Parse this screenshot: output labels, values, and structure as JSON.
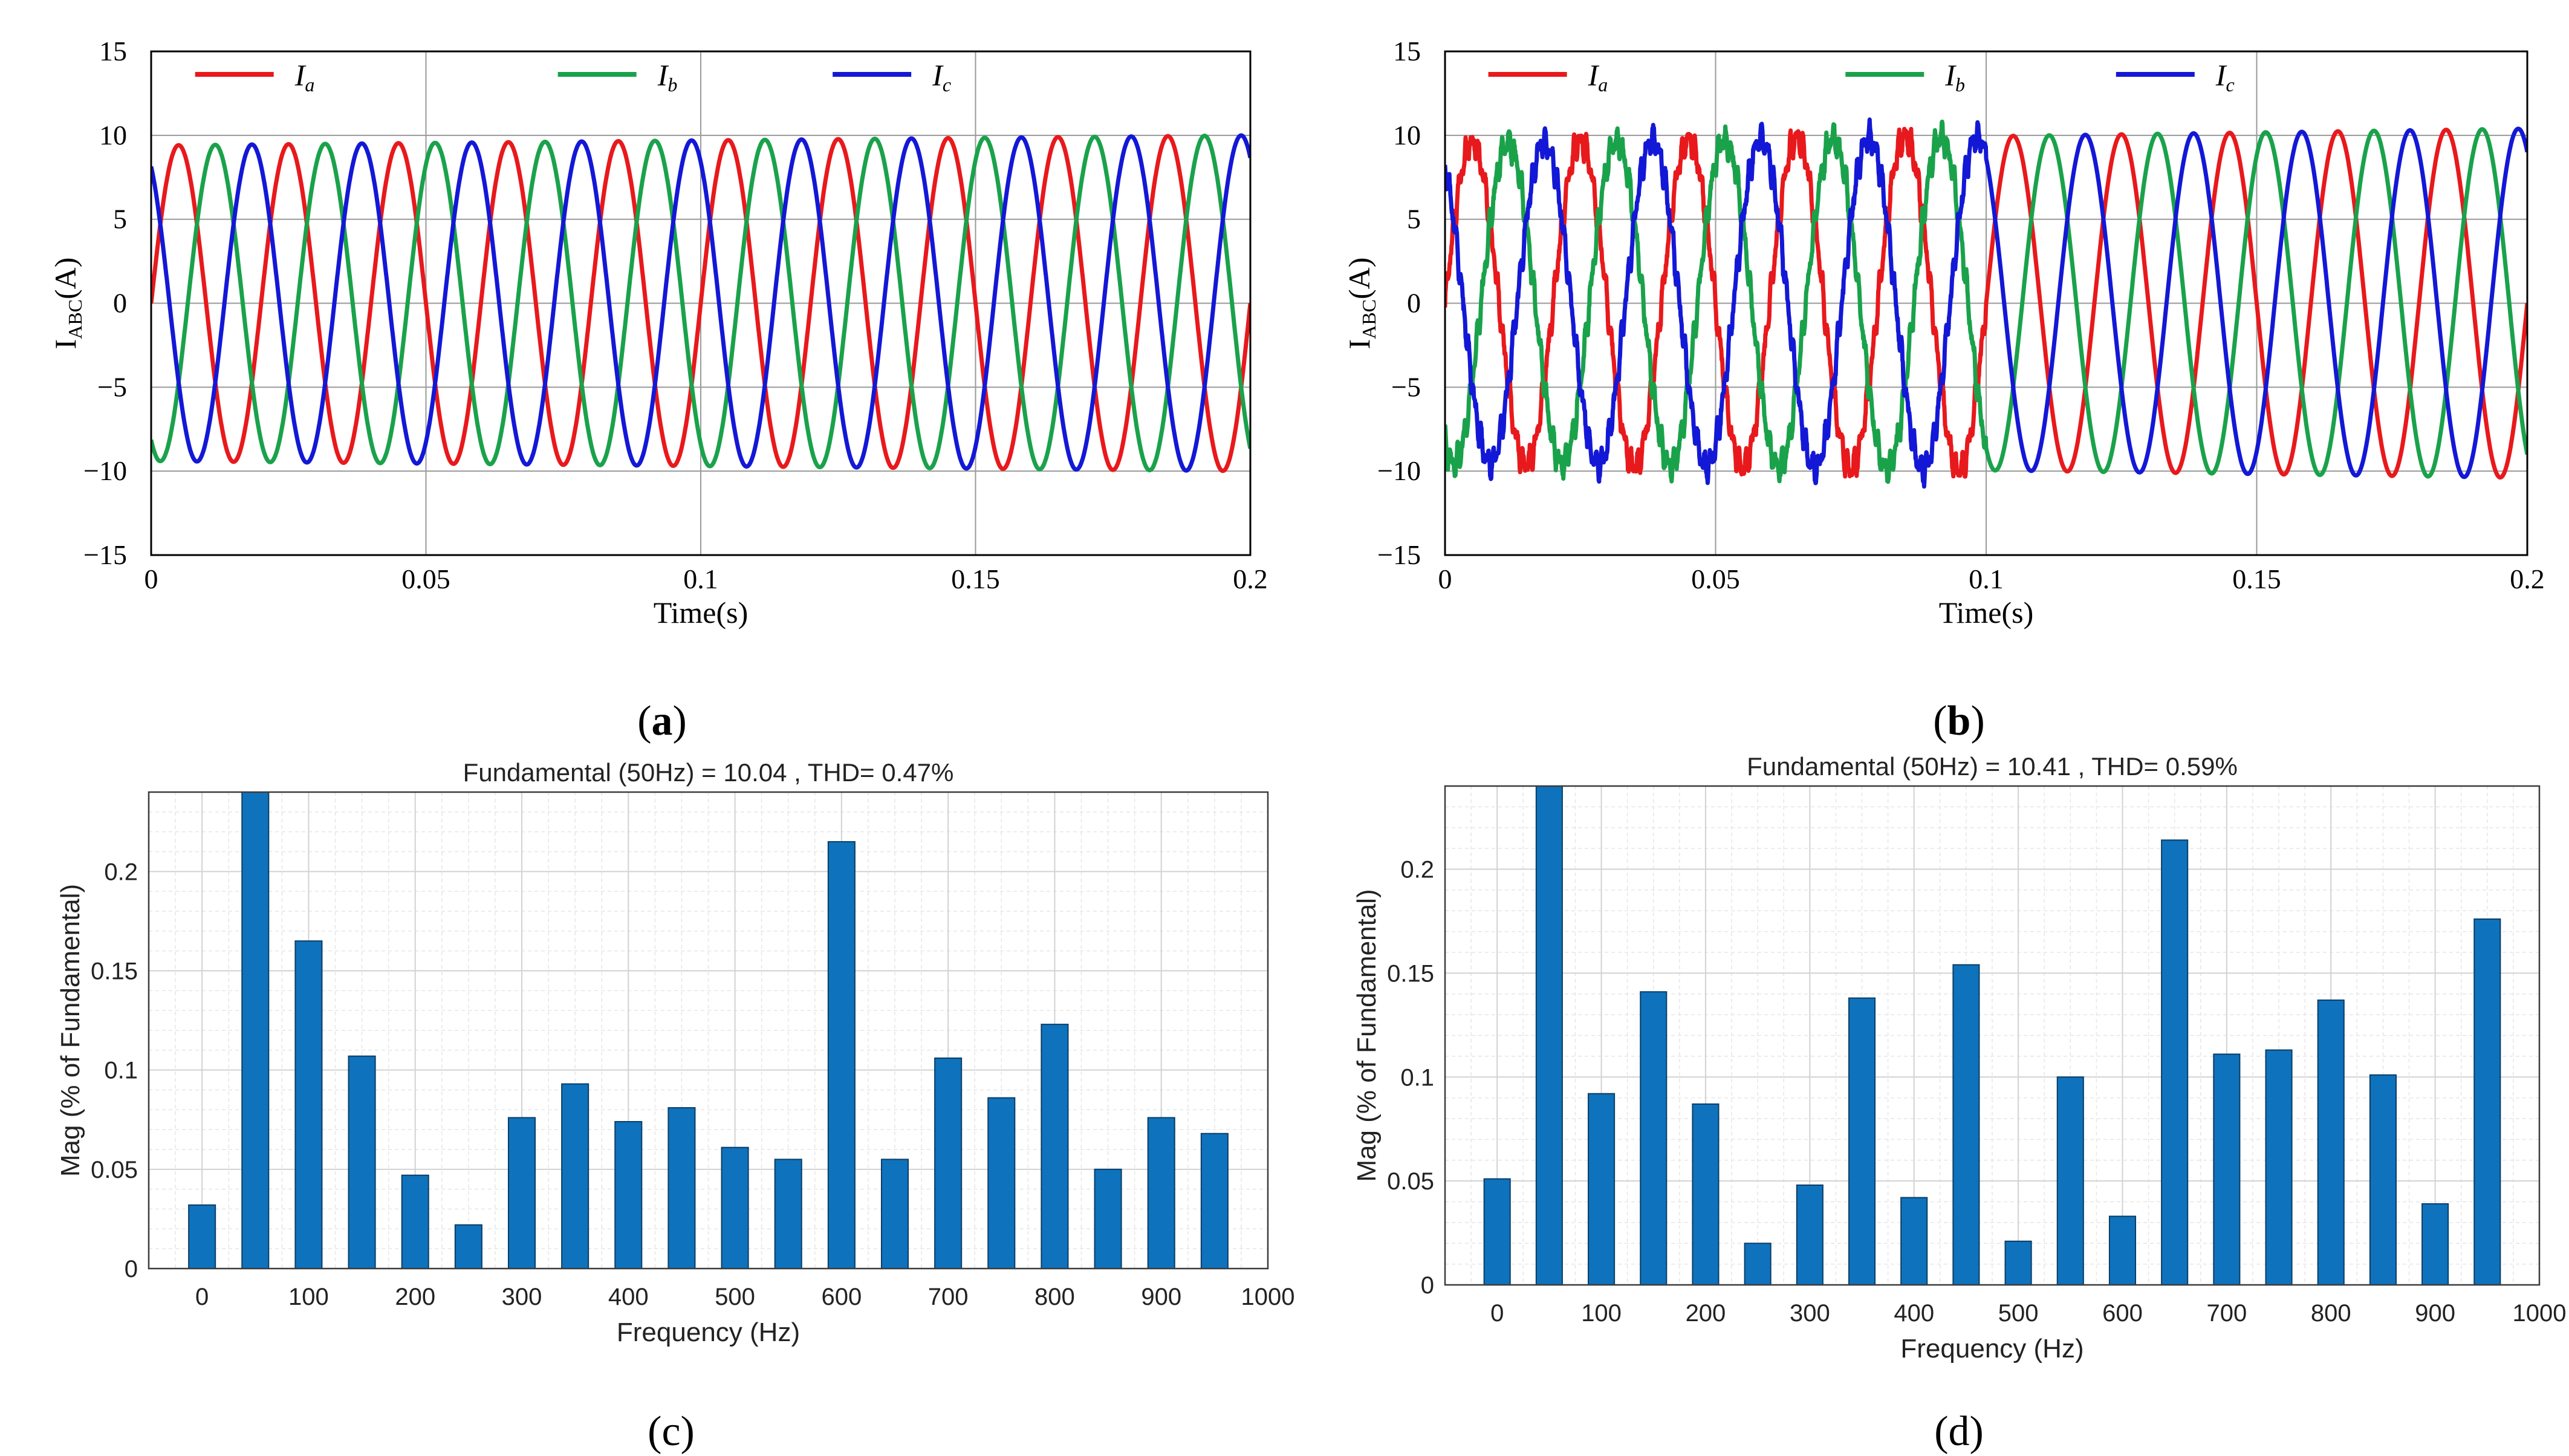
{
  "chart_data": [
    {
      "id": "a",
      "type": "line",
      "caption": "a",
      "xlabel": "Time(s)",
      "ylabel_main": "I",
      "ylabel_sub": "ABC",
      "ylabel_unit": "(A)",
      "xlim": [
        0,
        0.2
      ],
      "ylim": [
        -15,
        15
      ],
      "xticks": [
        "0",
        "0.05",
        "0.1",
        "0.15",
        "0.2"
      ],
      "yticks": [
        "15",
        "10",
        "5",
        "0",
        "−5",
        "−10",
        "−15"
      ],
      "frequency_hz": 50,
      "amplitude_start": 9.4,
      "amplitude_end": 10.0,
      "noise": false,
      "series": [
        {
          "name": "I",
          "sub": "a",
          "color": "#e8191c",
          "phase_deg": 0
        },
        {
          "name": "I",
          "sub": "b",
          "color": "#1aa24b",
          "phase_deg": -120
        },
        {
          "name": "I",
          "sub": "c",
          "color": "#1318d6",
          "phase_deg": 120
        }
      ]
    },
    {
      "id": "b",
      "type": "line",
      "caption": "b",
      "xlabel": "Time(s)",
      "ylabel_main": "I",
      "ylabel_sub": "ABC",
      "ylabel_unit": "(A)",
      "xlim": [
        0,
        0.2
      ],
      "ylim": [
        -15,
        15
      ],
      "xticks": [
        "0",
        "0.05",
        "0.1",
        "0.15",
        "0.2"
      ],
      "yticks": [
        "15",
        "10",
        "5",
        "0",
        "−5",
        "−10",
        "−15"
      ],
      "frequency_hz": 50,
      "amplitude_start": 9.5,
      "amplitude_end": 10.4,
      "noise": true,
      "noise_until": 0.1,
      "series": [
        {
          "name": "I",
          "sub": "a",
          "color": "#e8191c",
          "phase_deg": 0
        },
        {
          "name": "I",
          "sub": "b",
          "color": "#1aa24b",
          "phase_deg": -120
        },
        {
          "name": "I",
          "sub": "c",
          "color": "#1318d6",
          "phase_deg": 120
        }
      ]
    },
    {
      "id": "c",
      "type": "bar",
      "caption": "c",
      "title": "Fundamental (50Hz) = 10.04 , THD= 0.47%",
      "xlabel": "Frequency (Hz)",
      "ylabel": "Mag (% of Fundamental)",
      "xlim": [
        -50,
        1000
      ],
      "ylim": [
        0,
        0.24
      ],
      "xticks": [
        "0",
        "100",
        "200",
        "300",
        "400",
        "500",
        "600",
        "700",
        "800",
        "900",
        "1000"
      ],
      "yticks": [
        "0",
        "0.05",
        "0.1",
        "0.15",
        "0.2"
      ],
      "bar_color": "#0f72bd",
      "categories": [
        0,
        50,
        100,
        150,
        200,
        250,
        300,
        350,
        400,
        450,
        500,
        550,
        600,
        650,
        700,
        750,
        800,
        850,
        900,
        950
      ],
      "values": [
        0.032,
        0.24,
        0.165,
        0.107,
        0.047,
        0.022,
        0.076,
        0.093,
        0.074,
        0.081,
        0.061,
        0.055,
        0.215,
        0.055,
        0.106,
        0.086,
        0.123,
        0.05,
        0.076,
        0.068
      ]
    },
    {
      "id": "d",
      "type": "bar",
      "caption": "d",
      "title": "Fundamental (50Hz) = 10.41 , THD= 0.59%",
      "xlabel": "Frequency (Hz)",
      "ylabel": "Mag (% of Fundamental)",
      "xlim": [
        -50,
        1000
      ],
      "ylim": [
        0,
        0.24
      ],
      "xticks": [
        "0",
        "100",
        "200",
        "300",
        "400",
        "500",
        "600",
        "700",
        "800",
        "900",
        "1000"
      ],
      "yticks": [
        "0",
        "0.05",
        "0.1",
        "0.15",
        "0.2"
      ],
      "bar_color": "#0f72bd",
      "categories": [
        0,
        50,
        100,
        150,
        200,
        250,
        300,
        350,
        400,
        450,
        500,
        550,
        600,
        650,
        700,
        750,
        800,
        850,
        900,
        950
      ],
      "values": [
        0.051,
        0.24,
        0.092,
        0.141,
        0.087,
        0.02,
        0.048,
        0.138,
        0.042,
        0.154,
        0.021,
        0.1,
        0.033,
        0.214,
        0.111,
        0.113,
        0.137,
        0.101,
        0.039,
        0.176
      ]
    }
  ]
}
